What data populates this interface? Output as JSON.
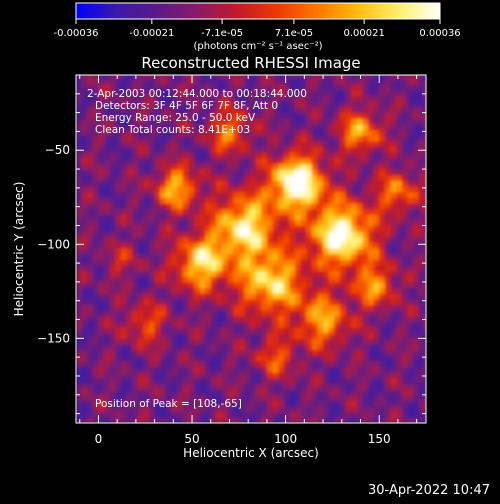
{
  "chart_data": {
    "type": "heatmap",
    "title": "Reconstructed RHESSI Image",
    "xlabel": "Heliocentric X (arcsec)",
    "ylabel": "Heliocentric Y (arcsec)",
    "xlim": [
      -12,
      175
    ],
    "ylim": [
      -195,
      -10
    ],
    "x_ticks": [
      0,
      50,
      100,
      150
    ],
    "y_ticks": [
      -50,
      -100,
      -150
    ],
    "colorbar": {
      "min": -0.00036,
      "max": 0.00036,
      "ticks": [
        {
          "value": -0.00036,
          "label": "-0.00036"
        },
        {
          "value": -0.00021,
          "label": "-0.00021"
        },
        {
          "value": -7.1e-05,
          "label": "-7.1e-05"
        },
        {
          "value": 7.1e-05,
          "label": "7.1e-05"
        },
        {
          "value": 0.00021,
          "label": "0.00021"
        },
        {
          "value": 0.00036,
          "label": "0.00036"
        }
      ],
      "unit_label": "(photons cm⁻² s⁻¹ asec⁻²)",
      "colormap": [
        "#0000ff",
        "#3a1aa8",
        "#5a1a8a",
        "#8a1a66",
        "#c21a2a",
        "#ee3a00",
        "#ff7a00",
        "#ffbe10",
        "#fff070",
        "#ffffff"
      ]
    },
    "annotations": [
      "2-Apr-2003 00:12:44.000 to 00:18:44.000",
      "Detectors: 3F 4F 5F 6F 7F 8F, Att 0",
      "Energy Range: 25.0 - 50.0 keV",
      "Clean     Total counts: 8.41E+03"
    ],
    "peak_text": "Position of Peak = [108,-65]",
    "peak": {
      "x": 108,
      "y": -65
    },
    "sources": [
      {
        "x": 106,
        "y": -67,
        "sigma": 10,
        "amp": 1.0
      },
      {
        "x": 130,
        "y": -95,
        "sigma": 12,
        "amp": 0.9
      },
      {
        "x": 78,
        "y": -90,
        "sigma": 12,
        "amp": 0.75
      },
      {
        "x": 55,
        "y": -110,
        "sigma": 10,
        "amp": 0.7
      },
      {
        "x": 42,
        "y": -70,
        "sigma": 8,
        "amp": 0.6
      },
      {
        "x": 92,
        "y": -120,
        "sigma": 12,
        "amp": 0.7
      },
      {
        "x": 140,
        "y": -40,
        "sigma": 8,
        "amp": 0.55
      },
      {
        "x": 120,
        "y": -140,
        "sigma": 10,
        "amp": 0.55
      },
      {
        "x": 148,
        "y": -122,
        "sigma": 8,
        "amp": 0.5
      },
      {
        "x": 70,
        "y": -40,
        "sigma": 8,
        "amp": 0.45
      },
      {
        "x": 160,
        "y": -72,
        "sigma": 8,
        "amp": 0.45
      },
      {
        "x": 25,
        "y": -142,
        "sigma": 8,
        "amp": 0.35
      },
      {
        "x": 12,
        "y": -108,
        "sigma": 7,
        "amp": 0.2
      },
      {
        "x": 95,
        "y": -160,
        "sigma": 8,
        "amp": 0.35
      }
    ]
  },
  "footer": {
    "timestamp": "30-Apr-2022 10:47"
  }
}
